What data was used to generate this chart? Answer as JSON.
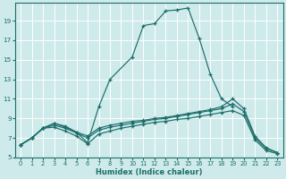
{
  "xlabel": "Humidex (Indice chaleur)",
  "bg_color": "#ceeaea",
  "line_color": "#1c6e6a",
  "grid_color": "#ffffff",
  "xlim": [
    -0.5,
    23.5
  ],
  "ylim": [
    5,
    20.8
  ],
  "yticks": [
    5,
    7,
    9,
    11,
    13,
    15,
    17,
    19
  ],
  "xticks": [
    0,
    1,
    2,
    3,
    4,
    5,
    6,
    7,
    8,
    9,
    10,
    11,
    12,
    13,
    14,
    15,
    16,
    17,
    18,
    19,
    20,
    21,
    22,
    23
  ],
  "series": [
    {
      "x": [
        0,
        1,
        2,
        3,
        4,
        5,
        6,
        7,
        8,
        10,
        11,
        12,
        13,
        14,
        15,
        16,
        17,
        18,
        19
      ],
      "y": [
        6.3,
        7.0,
        8.0,
        8.5,
        8.1,
        7.6,
        6.5,
        10.2,
        13.0,
        15.3,
        18.5,
        18.7,
        20.0,
        20.1,
        20.3,
        17.2,
        13.5,
        11.0,
        10.2
      ]
    },
    {
      "x": [
        0,
        1,
        2,
        3,
        4,
        5,
        6,
        7,
        8,
        9,
        10,
        11,
        12,
        13,
        14,
        15,
        16,
        17,
        18,
        19,
        20,
        21,
        22,
        23
      ],
      "y": [
        6.3,
        7.0,
        8.0,
        8.5,
        8.2,
        7.6,
        7.2,
        8.0,
        8.3,
        8.5,
        8.7,
        8.8,
        9.0,
        9.1,
        9.3,
        9.5,
        9.7,
        9.9,
        10.2,
        11.0,
        10.0,
        7.2,
        6.0,
        5.5
      ]
    },
    {
      "x": [
        0,
        1,
        2,
        3,
        4,
        5,
        6,
        7,
        8,
        9,
        10,
        11,
        12,
        13,
        14,
        15,
        16,
        17,
        18,
        19,
        20,
        21,
        22,
        23
      ],
      "y": [
        6.3,
        7.0,
        8.0,
        8.3,
        8.0,
        7.5,
        7.0,
        7.8,
        8.1,
        8.3,
        8.5,
        8.7,
        8.9,
        9.0,
        9.2,
        9.4,
        9.6,
        9.8,
        10.0,
        10.5,
        9.7,
        7.0,
        5.9,
        5.5
      ]
    },
    {
      "x": [
        0,
        1,
        2,
        3,
        4,
        5,
        6,
        7,
        8,
        9,
        10,
        11,
        12,
        13,
        14,
        15,
        16,
        17,
        18,
        19,
        20,
        21,
        22,
        23
      ],
      "y": [
        6.3,
        7.0,
        8.0,
        8.1,
        7.7,
        7.2,
        6.4,
        7.4,
        7.7,
        8.0,
        8.2,
        8.4,
        8.6,
        8.7,
        8.9,
        9.0,
        9.2,
        9.4,
        9.6,
        9.8,
        9.3,
        6.8,
        5.7,
        5.4
      ]
    }
  ]
}
